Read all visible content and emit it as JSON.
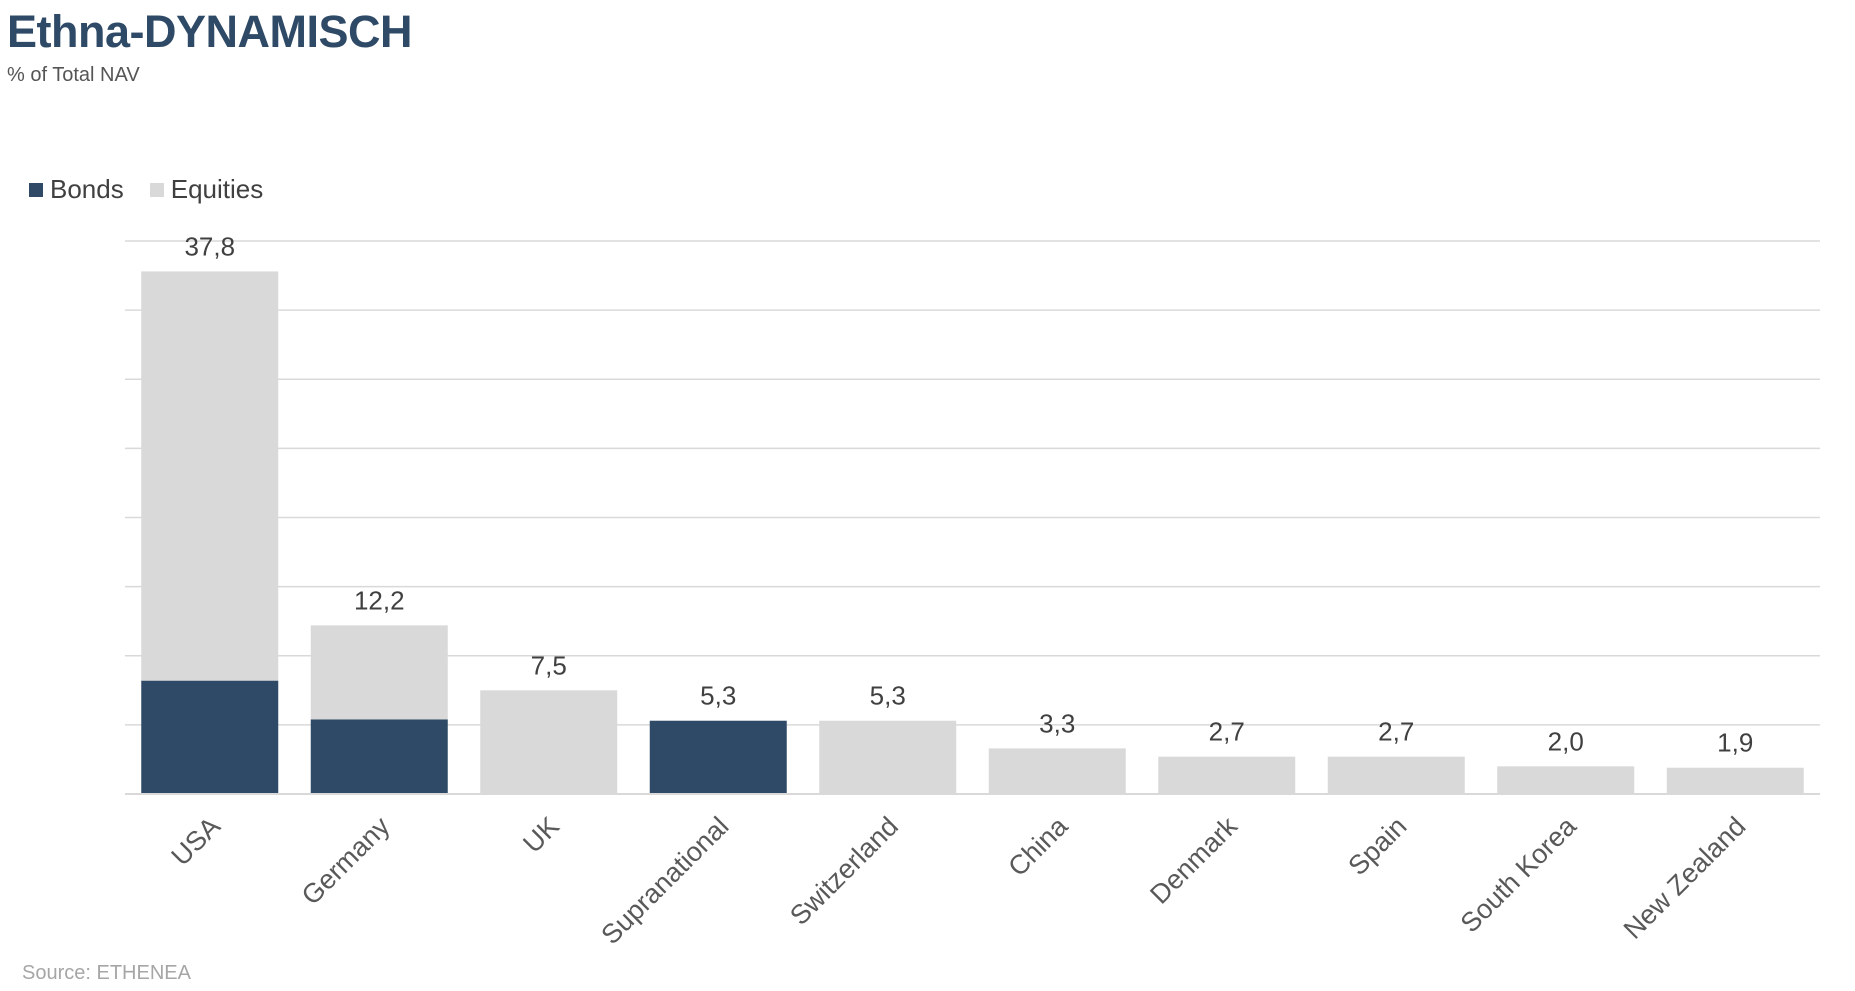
{
  "chart_data": {
    "type": "bar",
    "stacked": true,
    "title": "Ethna-DYNAMISCH",
    "subtitle": "% of Total NAV",
    "source": "Source: ETHENEA",
    "categories": [
      "USA",
      "Germany",
      "UK",
      "Supranational",
      "Switzerland",
      "China",
      "Denmark",
      "Spain",
      "South Korea",
      "New Zealand"
    ],
    "series": [
      {
        "name": "Bonds",
        "color": "#2f4a66",
        "values": [
          8.2,
          5.4,
          0,
          5.3,
          0,
          0,
          0,
          0,
          0,
          0
        ]
      },
      {
        "name": "Equities",
        "color": "#d9d9d9",
        "values": [
          29.6,
          6.8,
          7.5,
          0,
          5.3,
          3.3,
          2.7,
          2.7,
          2.0,
          1.9
        ]
      }
    ],
    "data_labels": [
      "37,8",
      "12,2",
      "7,5",
      "5,3",
      "5,3",
      "3,3",
      "2,7",
      "2,7",
      "2,0",
      "1,9"
    ],
    "ylim": [
      0,
      40
    ],
    "grid": true,
    "legend": "top-left",
    "xlabel": "",
    "ylabel": ""
  }
}
